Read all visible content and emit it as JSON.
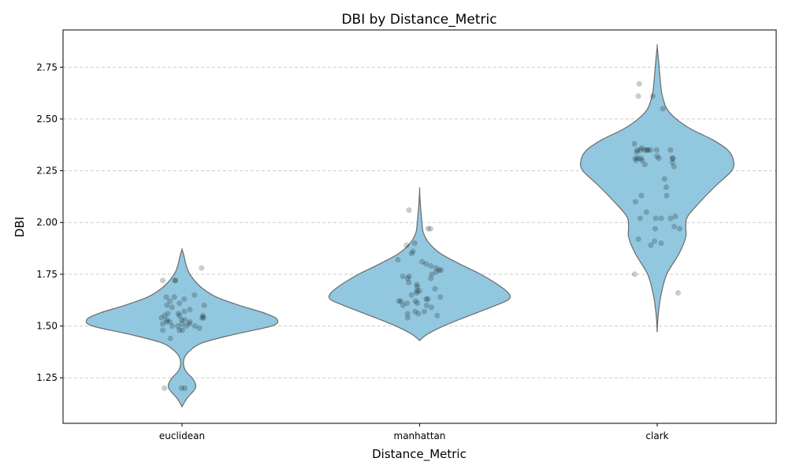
{
  "chart_data": {
    "type": "violin",
    "title": "DBI by Distance_Metric",
    "xlabel": "Distance_Metric",
    "ylabel": "DBI",
    "categories": [
      "euclidean",
      "manhattan",
      "clark"
    ],
    "ylim": [
      1.03,
      2.93
    ],
    "yticks": [
      1.25,
      1.5,
      1.75,
      2.0,
      2.25,
      2.5,
      2.75
    ],
    "ytick_labels": [
      "1.25",
      "1.50",
      "1.75",
      "2.00",
      "2.25",
      "2.50",
      "2.75"
    ],
    "grid": "horizontal dashed",
    "colors": {
      "violin_fill": "#92c8df",
      "violin_edge": "#6a6a6a",
      "points": "#000000"
    },
    "violins": [
      {
        "category": "euclidean",
        "shape": [
          [
            1.11,
            0.0
          ],
          [
            1.15,
            0.05
          ],
          [
            1.2,
            0.14
          ],
          [
            1.24,
            0.12
          ],
          [
            1.29,
            0.03
          ],
          [
            1.34,
            0.02
          ],
          [
            1.38,
            0.08
          ],
          [
            1.42,
            0.22
          ],
          [
            1.46,
            0.55
          ],
          [
            1.5,
            0.94
          ],
          [
            1.53,
            1.0
          ],
          [
            1.56,
            0.88
          ],
          [
            1.6,
            0.6
          ],
          [
            1.64,
            0.36
          ],
          [
            1.68,
            0.22
          ],
          [
            1.72,
            0.13
          ],
          [
            1.76,
            0.07
          ],
          [
            1.8,
            0.04
          ],
          [
            1.84,
            0.02
          ],
          [
            1.87,
            0.0
          ]
        ]
      },
      {
        "category": "manhattan",
        "shape": [
          [
            1.43,
            0.0
          ],
          [
            1.46,
            0.08
          ],
          [
            1.5,
            0.25
          ],
          [
            1.55,
            0.52
          ],
          [
            1.6,
            0.8
          ],
          [
            1.63,
            0.94
          ],
          [
            1.66,
            0.93
          ],
          [
            1.7,
            0.82
          ],
          [
            1.75,
            0.64
          ],
          [
            1.8,
            0.42
          ],
          [
            1.85,
            0.22
          ],
          [
            1.9,
            0.1
          ],
          [
            1.95,
            0.04
          ],
          [
            2.0,
            0.025
          ],
          [
            2.05,
            0.015
          ],
          [
            2.1,
            0.006
          ],
          [
            2.16,
            0.0
          ]
        ]
      },
      {
        "category": "clark",
        "shape": [
          [
            1.47,
            0.0
          ],
          [
            1.55,
            0.01
          ],
          [
            1.65,
            0.04
          ],
          [
            1.75,
            0.1
          ],
          [
            1.85,
            0.23
          ],
          [
            1.93,
            0.3
          ],
          [
            1.98,
            0.3
          ],
          [
            2.03,
            0.32
          ],
          [
            2.1,
            0.45
          ],
          [
            2.18,
            0.62
          ],
          [
            2.25,
            0.78
          ],
          [
            2.3,
            0.8
          ],
          [
            2.35,
            0.74
          ],
          [
            2.4,
            0.58
          ],
          [
            2.45,
            0.36
          ],
          [
            2.5,
            0.2
          ],
          [
            2.55,
            0.1
          ],
          [
            2.62,
            0.05
          ],
          [
            2.7,
            0.03
          ],
          [
            2.78,
            0.015
          ],
          [
            2.85,
            0.0
          ]
        ]
      }
    ],
    "points": [
      {
        "category": "euclidean",
        "values": [
          1.2,
          1.2,
          1.2,
          1.44,
          1.48,
          1.48,
          1.48,
          1.49,
          1.5,
          1.5,
          1.5,
          1.5,
          1.51,
          1.51,
          1.51,
          1.52,
          1.52,
          1.52,
          1.53,
          1.53,
          1.53,
          1.54,
          1.54,
          1.54,
          1.55,
          1.55,
          1.55,
          1.56,
          1.56,
          1.57,
          1.58,
          1.59,
          1.6,
          1.6,
          1.61,
          1.62,
          1.63,
          1.64,
          1.64,
          1.65,
          1.72,
          1.72,
          1.72,
          1.78
        ]
      },
      {
        "category": "manhattan",
        "values": [
          1.54,
          1.55,
          1.56,
          1.56,
          1.57,
          1.57,
          1.59,
          1.6,
          1.6,
          1.61,
          1.61,
          1.62,
          1.62,
          1.62,
          1.63,
          1.63,
          1.64,
          1.65,
          1.66,
          1.67,
          1.67,
          1.68,
          1.69,
          1.7,
          1.71,
          1.73,
          1.73,
          1.74,
          1.74,
          1.75,
          1.76,
          1.77,
          1.77,
          1.78,
          1.79,
          1.8,
          1.81,
          1.82,
          1.85,
          1.86,
          1.89,
          1.9,
          1.97,
          1.97,
          2.06
        ]
      },
      {
        "category": "clark",
        "values": [
          1.66,
          1.75,
          1.89,
          1.9,
          1.91,
          1.92,
          1.97,
          1.97,
          1.98,
          2.02,
          2.02,
          2.02,
          2.02,
          2.03,
          2.05,
          2.1,
          2.13,
          2.13,
          2.17,
          2.21,
          2.27,
          2.28,
          2.29,
          2.3,
          2.3,
          2.31,
          2.31,
          2.31,
          2.31,
          2.31,
          2.31,
          2.32,
          2.34,
          2.35,
          2.35,
          2.35,
          2.35,
          2.35,
          2.35,
          2.35,
          2.35,
          2.36,
          2.38,
          2.55,
          2.61,
          2.61,
          2.67
        ]
      }
    ]
  }
}
